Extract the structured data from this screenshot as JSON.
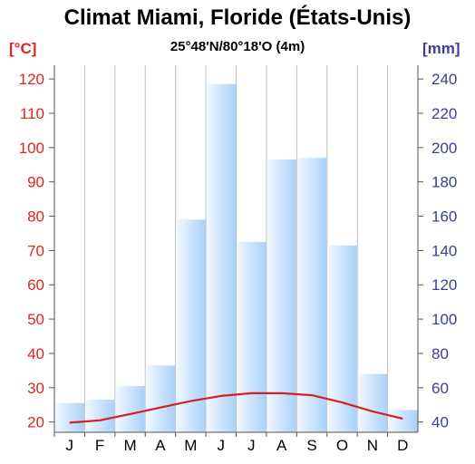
{
  "header": {
    "title": "Climat Miami, Floride (États-Unis)",
    "subtitle": "25°48'N/80°18'O (4m)",
    "left_unit": "[°C]",
    "right_unit": "[mm]"
  },
  "colors": {
    "temperature": "#d42020",
    "precip_axis": "#3a3f94",
    "temp_axis": "#e0261b",
    "bar_light": "#f2f8ff",
    "bar_dark": "#a9d1fa",
    "grid": "#bfbfbf"
  },
  "chart_data": {
    "type": "bar",
    "categories": [
      "J",
      "F",
      "M",
      "A",
      "M",
      "J",
      "J",
      "A",
      "S",
      "O",
      "N",
      "D"
    ],
    "series": [
      {
        "type": "bar",
        "axis": "right",
        "values": [
          51,
          53,
          61,
          73,
          158,
          237,
          145,
          193,
          194,
          143,
          68,
          47
        ]
      },
      {
        "type": "line",
        "axis": "left",
        "values": [
          19.8,
          20.5,
          22.3,
          24.2,
          26.1,
          27.6,
          28.4,
          28.4,
          27.8,
          25.7,
          23.1,
          21.0
        ]
      }
    ],
    "left_axis": {
      "ticks": [
        20,
        30,
        40,
        50,
        60,
        70,
        80,
        90,
        100,
        110,
        120
      ],
      "range": [
        17,
        124
      ]
    },
    "right_axis": {
      "ticks": [
        40,
        60,
        80,
        100,
        120,
        140,
        160,
        180,
        200,
        220,
        240
      ],
      "range": [
        34,
        248
      ]
    },
    "grid": true
  }
}
